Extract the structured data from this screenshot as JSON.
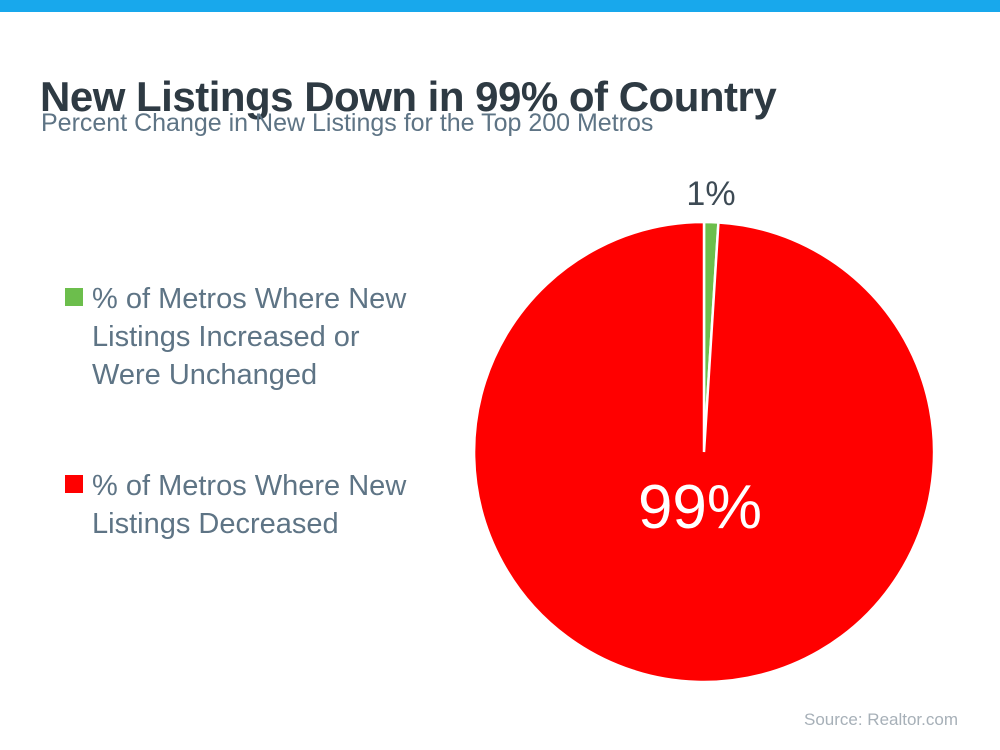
{
  "accent": {
    "top_bar_color": "#18A8EC"
  },
  "header": {
    "title": "New Listings Down in 99% of Country",
    "subtitle": "Percent Change in New Listings for the Top 200 Metros"
  },
  "legend": {
    "items": [
      {
        "label": "% of Metros Where New\nListings Increased or\nWere Unchanged",
        "color": "#6CBE4C"
      },
      {
        "label": "% of Metros Where New\nListings Decreased",
        "color": "#FF0000"
      }
    ]
  },
  "chart_data": {
    "type": "pie",
    "title": "New Listings Down in 99% of Country",
    "subtitle": "Percent Change in New Listings for the Top 200 Metros",
    "slices": [
      {
        "label": "% of Metros Where New Listings Increased or Were Unchanged",
        "value": 1,
        "percent_label": "1%",
        "color": "#6CBE4C",
        "label_placement": "outside-top"
      },
      {
        "label": "% of Metros Where New Listings Decreased",
        "value": 99,
        "percent_label": "99%",
        "color": "#FF0000",
        "label_placement": "inside"
      }
    ],
    "start_angle_deg": 0,
    "direction": "clockwise",
    "slice_separator_color": "#FFFFFF",
    "legend_position": "left"
  },
  "footer": {
    "source_label": "Source: Realtor.com"
  }
}
